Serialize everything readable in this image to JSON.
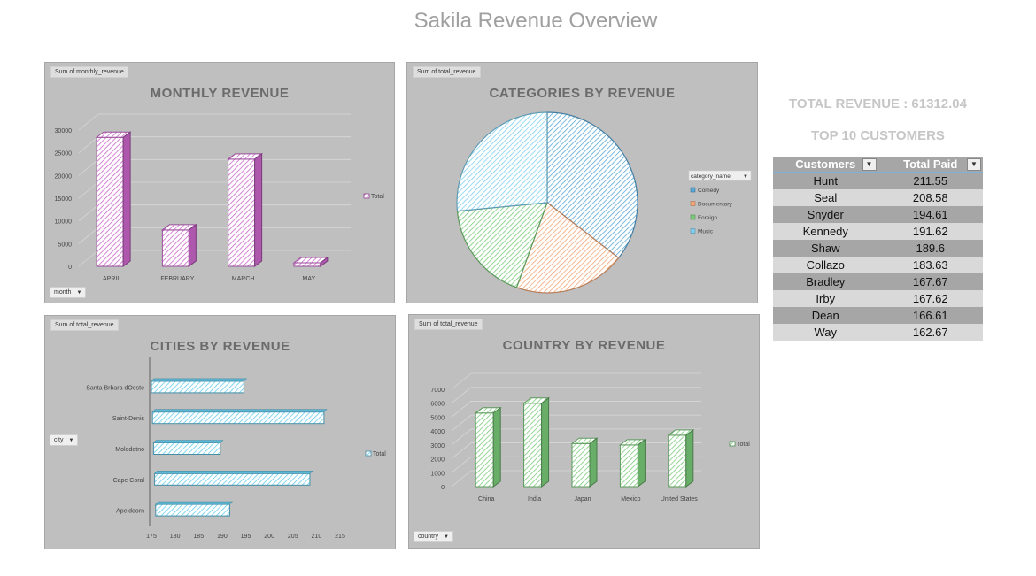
{
  "page_title": "Sakila Revenue Overview",
  "total_revenue_label": "TOTAL REVENUE : 61312.04",
  "top_customers_label": "TOP 10 CUSTOMERS",
  "customers_table": {
    "headers": [
      "Customers",
      "Total Paid"
    ],
    "rows": [
      [
        "Hunt",
        "211.55"
      ],
      [
        "Seal",
        "208.58"
      ],
      [
        "Snyder",
        "194.61"
      ],
      [
        "Kennedy",
        "191.62"
      ],
      [
        "Shaw",
        "189.6"
      ],
      [
        "Collazo",
        "183.63"
      ],
      [
        "Bradley",
        "167.67"
      ],
      [
        "Irby",
        "167.62"
      ],
      [
        "Dean",
        "166.61"
      ],
      [
        "Way",
        "162.67"
      ]
    ]
  },
  "chart_data": [
    {
      "type": "bar",
      "pivot_field": "Sum of monthly_revenue",
      "title": "MONTHLY REVENUE",
      "categories": [
        "APRIL",
        "FEBRUARY",
        "MARCH",
        "MAY"
      ],
      "series": [
        {
          "name": "Total",
          "values": [
            28400,
            8000,
            23600,
            500
          ]
        }
      ],
      "yticks": [
        "0",
        "5000",
        "10000",
        "15000",
        "20000",
        "25000",
        "30000"
      ],
      "ylim": [
        0,
        30000
      ],
      "filter_button": "month",
      "legend_position": "right",
      "color": "#cc66cc"
    },
    {
      "type": "pie",
      "pivot_field": "Sum of total_revenue",
      "title": "CATEGORIES BY REVENUE",
      "legend_title": "category_name",
      "labels": [
        "Comedy",
        "Documentary",
        "Foreign",
        "Music"
      ],
      "values": [
        35.5,
        20,
        18,
        26.5
      ],
      "colors": [
        "#5aa8d8",
        "#f4a878",
        "#7acc7a",
        "#7fd0f0"
      ]
    },
    {
      "type": "bar",
      "orientation": "horizontal",
      "pivot_field": "Sum of total_revenue",
      "title": "CITIES BY REVENUE",
      "categories": [
        "Santa Brbara dOeste",
        "Saint-Denis",
        "Molodetno",
        "Cape Coral",
        "Apeldoorn"
      ],
      "series": [
        {
          "name": "Total",
          "values": [
            194.6,
            211.6,
            189.6,
            208.6,
            191.6
          ]
        }
      ],
      "xticks": [
        "175",
        "180",
        "185",
        "190",
        "195",
        "200",
        "205",
        "210",
        "215"
      ],
      "xlim": [
        175,
        215
      ],
      "filter_button": "city",
      "legend_position": "right",
      "color": "#66ccee"
    },
    {
      "type": "bar",
      "pivot_field": "Sum of total_revenue",
      "title": "COUNTRY BY REVENUE",
      "categories": [
        "China",
        "India",
        "Japan",
        "Mexico",
        "United States"
      ],
      "series": [
        {
          "name": "Total",
          "values": [
            5300,
            6000,
            3100,
            3000,
            3700
          ]
        }
      ],
      "yticks": [
        "0",
        "1000",
        "2000",
        "3000",
        "4000",
        "5000",
        "6000",
        "7000"
      ],
      "ylim": [
        0,
        7000
      ],
      "filter_button": "country",
      "legend_position": "right",
      "color": "#7acc7a"
    }
  ]
}
